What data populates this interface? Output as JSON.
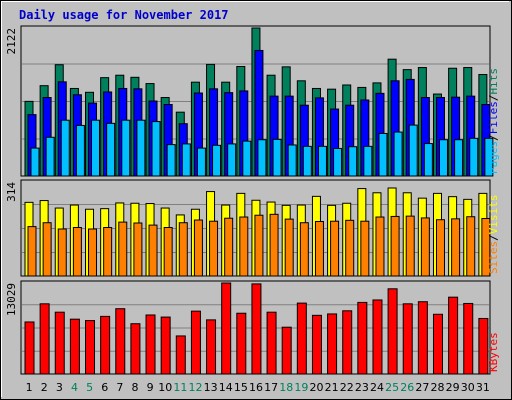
{
  "title": "Daily usage for November 2017",
  "colors": {
    "hits": "#00805c",
    "files": "#0000ff",
    "pages": "#00c0ff",
    "visits": "#ffff00",
    "sites": "#ff8000",
    "kbytes": "#ff0000",
    "weekend_label": "#00805c",
    "weekday_label": "#000000",
    "title": "#0000cc"
  },
  "chart_data": [
    {
      "type": "bar",
      "ymax_label": "2122",
      "ylim": [
        0,
        2122
      ],
      "categories": [
        "1",
        "2",
        "3",
        "4",
        "5",
        "6",
        "7",
        "8",
        "9",
        "10",
        "11",
        "12",
        "13",
        "14",
        "15",
        "16",
        "17",
        "18",
        "19",
        "20",
        "21",
        "22",
        "23",
        "24",
        "25",
        "26",
        "27",
        "28",
        "29",
        "30",
        "31"
      ],
      "weekend_days": [
        "4",
        "5",
        "11",
        "12",
        "18",
        "19",
        "25",
        "26"
      ],
      "right_label": [
        "Pages",
        "/",
        "Files",
        "/",
        "Hits"
      ],
      "series": [
        {
          "name": "Hits",
          "values": [
            1070,
            1295,
            1595,
            1255,
            1200,
            1410,
            1445,
            1415,
            1325,
            1125,
            915,
            1345,
            1600,
            1345,
            1570,
            2122,
            1445,
            1565,
            1365,
            1255,
            1245,
            1305,
            1270,
            1335,
            1675,
            1525,
            1555,
            1175,
            1545,
            1555,
            1455
          ]
        },
        {
          "name": "Files",
          "values": [
            880,
            1125,
            1350,
            1165,
            1045,
            1205,
            1255,
            1250,
            1075,
            1025,
            750,
            1190,
            1250,
            1195,
            1220,
            1800,
            1145,
            1145,
            1015,
            1120,
            960,
            1015,
            1090,
            1185,
            1365,
            1385,
            1125,
            1125,
            1130,
            1145,
            1025
          ]
        },
        {
          "name": "Pages",
          "values": [
            400,
            555,
            800,
            725,
            800,
            755,
            800,
            800,
            780,
            450,
            460,
            400,
            440,
            460,
            500,
            520,
            525,
            445,
            425,
            425,
            395,
            420,
            425,
            610,
            630,
            730,
            465,
            520,
            520,
            540,
            540
          ]
        }
      ]
    },
    {
      "type": "bar",
      "ymax_label": "314",
      "ylim": [
        0,
        314
      ],
      "right_label": [
        "Sites",
        "/",
        "Visits"
      ],
      "series": [
        {
          "name": "Visits",
          "values": [
            246,
            252,
            227,
            237,
            223,
            225,
            244,
            243,
            242,
            227,
            204,
            223,
            282,
            237,
            276,
            253,
            247,
            236,
            237,
            266,
            236,
            243,
            292,
            278,
            294,
            278,
            260,
            276,
            265,
            256,
            276
          ]
        },
        {
          "name": "Sites",
          "values": [
            165,
            178,
            157,
            162,
            157,
            162,
            180,
            177,
            170,
            162,
            178,
            187,
            183,
            193,
            197,
            203,
            206,
            190,
            178,
            182,
            183,
            186,
            183,
            197,
            199,
            200,
            194,
            188,
            191,
            198,
            192
          ]
        }
      ]
    },
    {
      "type": "bar",
      "ymax_label": "13029",
      "ylim": [
        0,
        13029
      ],
      "right_label": [
        "KBytes"
      ],
      "series": [
        {
          "name": "KBytes",
          "values": [
            7450,
            10050,
            8850,
            7850,
            7650,
            8250,
            9350,
            7200,
            8450,
            8150,
            5450,
            9000,
            7750,
            13029,
            8700,
            12900,
            8850,
            6700,
            10150,
            8400,
            8600,
            9050,
            10250,
            10600,
            12200,
            10050,
            10350,
            8550,
            11000,
            10100,
            7950
          ]
        }
      ]
    }
  ]
}
